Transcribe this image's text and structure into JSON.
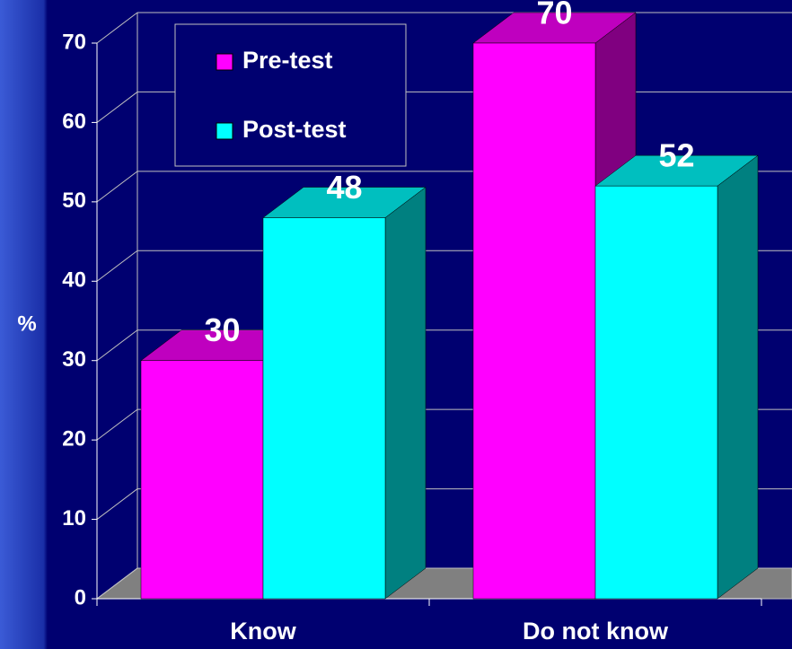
{
  "chart_data": {
    "type": "bar3d",
    "ylabel": "%",
    "categories": [
      "Know",
      "Do not know"
    ],
    "series": [
      {
        "name": "Pre-test",
        "color": "#ff00ff",
        "values": [
          30,
          70
        ]
      },
      {
        "name": "Post-test",
        "color": "#00ffff",
        "values": [
          48,
          52
        ]
      }
    ],
    "ylim": [
      0,
      70
    ],
    "yticks": [
      0,
      10,
      20,
      30,
      40,
      50,
      60,
      70
    ],
    "grid": true,
    "legend": "top-left"
  }
}
